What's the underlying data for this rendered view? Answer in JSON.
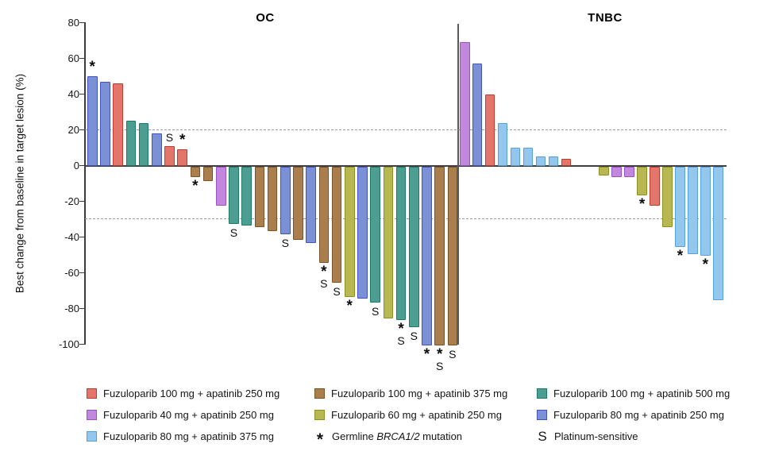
{
  "chart_data": {
    "type": "bar",
    "subtype": "waterfall",
    "ylabel": "Best change from baseline in target lesion (%)",
    "ylim": [
      -100,
      80
    ],
    "y_ticks": [
      80,
      60,
      40,
      20,
      0,
      -20,
      -40,
      -60,
      -80,
      -100
    ],
    "reference_lines": [
      20,
      -30
    ],
    "grid": false,
    "legend_position": "bottom",
    "groups": {
      "red": {
        "label": "Fuzuloparib 100 mg + apatinib 250 mg",
        "fill": "#E2766B",
        "stroke": "#C13B2F"
      },
      "brown": {
        "label": "Fuzuloparib 100 mg + apatinib 375 mg",
        "fill": "#AB7E4E",
        "stroke": "#7C5222"
      },
      "teal": {
        "label": "Fuzuloparib 100 mg + apatinib 500 mg",
        "fill": "#4C9F90",
        "stroke": "#1E7A68"
      },
      "orchid": {
        "label": "Fuzuloparib 40 mg + apatinib 250 mg",
        "fill": "#C288DE",
        "stroke": "#9C50C8"
      },
      "olive": {
        "label": "Fuzuloparib 60 mg + apatinib 250 mg",
        "fill": "#B7B851",
        "stroke": "#8C9020"
      },
      "blue": {
        "label": "Fuzuloparib 80 mg + apatinib 250 mg",
        "fill": "#7C90D6",
        "stroke": "#4152C5"
      },
      "sky": {
        "label": "Fuzuloparib 80 mg + apatinib 375 mg",
        "fill": "#93C7EE",
        "stroke": "#56A0D8"
      }
    },
    "marker_meanings": {
      "*": "Germline BRCA1/2 mutation",
      "S": "Platinum-sensitive"
    },
    "panels": [
      {
        "title": "OC",
        "bars": [
          {
            "value": 50,
            "group": "blue",
            "marker": "*"
          },
          {
            "value": 47,
            "group": "blue"
          },
          {
            "value": 46,
            "group": "red"
          },
          {
            "value": 25,
            "group": "teal"
          },
          {
            "value": 24,
            "group": "teal"
          },
          {
            "value": 18,
            "group": "blue"
          },
          {
            "value": 11,
            "group": "red",
            "marker": "S"
          },
          {
            "value": 9,
            "group": "red",
            "marker": "*"
          },
          {
            "value": -6,
            "group": "brown",
            "marker": "*"
          },
          {
            "value": -8,
            "group": "brown"
          },
          {
            "value": -22,
            "group": "orchid"
          },
          {
            "value": -32,
            "group": "teal",
            "marker": "S"
          },
          {
            "value": -33,
            "group": "teal"
          },
          {
            "value": -34,
            "group": "brown"
          },
          {
            "value": -36,
            "group": "brown"
          },
          {
            "value": -38,
            "group": "blue",
            "marker": "S"
          },
          {
            "value": -41,
            "group": "brown"
          },
          {
            "value": -43,
            "group": "blue"
          },
          {
            "value": -54,
            "group": "brown",
            "marker": "*S"
          },
          {
            "value": -65,
            "group": "brown",
            "marker": "S"
          },
          {
            "value": -73,
            "group": "olive",
            "marker": "*"
          },
          {
            "value": -74,
            "group": "blue"
          },
          {
            "value": -76,
            "group": "teal",
            "marker": "S"
          },
          {
            "value": -85,
            "group": "olive"
          },
          {
            "value": -86,
            "group": "teal",
            "marker": "*S"
          },
          {
            "value": -90,
            "group": "teal",
            "marker": "S"
          },
          {
            "value": -100,
            "group": "blue",
            "marker": "*"
          },
          {
            "value": -100,
            "group": "brown",
            "marker": "*S"
          },
          {
            "value": -100,
            "group": "brown",
            "marker": "S"
          }
        ]
      },
      {
        "title": "TNBC",
        "bars": [
          {
            "value": 69,
            "group": "orchid"
          },
          {
            "value": 57,
            "group": "blue"
          },
          {
            "value": 40,
            "group": "red"
          },
          {
            "value": 24,
            "group": "sky"
          },
          {
            "value": 10,
            "group": "sky"
          },
          {
            "value": 10,
            "group": "sky"
          },
          {
            "value": 5,
            "group": "sky"
          },
          {
            "value": 5,
            "group": "sky"
          },
          {
            "value": 4,
            "group": "red"
          },
          {
            "value": 0,
            "group": null
          },
          {
            "value": 0,
            "group": null
          },
          {
            "value": -5,
            "group": "olive"
          },
          {
            "value": -6,
            "group": "orchid"
          },
          {
            "value": -6,
            "group": "orchid"
          },
          {
            "value": -16,
            "group": "olive",
            "marker": "*"
          },
          {
            "value": -22,
            "group": "red"
          },
          {
            "value": -34,
            "group": "olive"
          },
          {
            "value": -45,
            "group": "sky",
            "marker": "*"
          },
          {
            "value": -49,
            "group": "sky"
          },
          {
            "value": -50,
            "group": "sky",
            "marker": "*"
          },
          {
            "value": -75,
            "group": "sky"
          }
        ]
      }
    ],
    "legend": {
      "rows": [
        [
          {
            "swatch": "red"
          },
          {
            "swatch": "brown"
          },
          {
            "swatch": "teal"
          }
        ],
        [
          {
            "swatch": "orchid"
          },
          {
            "swatch": "olive"
          },
          {
            "swatch": "blue"
          }
        ],
        [
          {
            "swatch": "sky"
          },
          {
            "symbol": "*",
            "pre": "Germline ",
            "italic": "BRCA1/2",
            "post": " mutation"
          },
          {
            "symbol": "S",
            "label": "Platinum-sensitive"
          }
        ]
      ]
    }
  }
}
